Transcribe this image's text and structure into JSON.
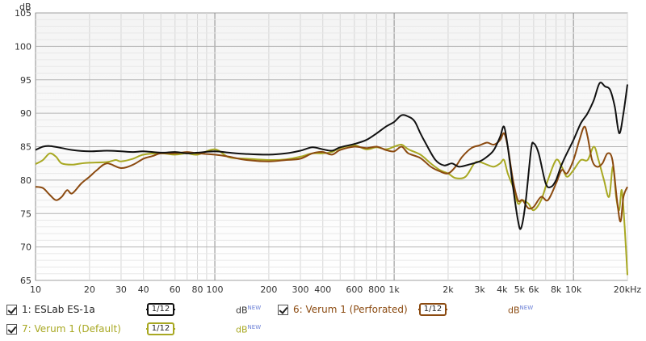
{
  "chart_data": {
    "type": "line",
    "ylabel": "dB",
    "xscale": "log",
    "xlim": [
      10,
      20000
    ],
    "ylim": [
      65,
      105
    ],
    "yticks": [
      65,
      70,
      75,
      80,
      85,
      90,
      95,
      100,
      105
    ],
    "xtick_labels": [
      {
        "v": 10,
        "t": "10"
      },
      {
        "v": 20,
        "t": "20"
      },
      {
        "v": 30,
        "t": "30"
      },
      {
        "v": 40,
        "t": "40"
      },
      {
        "v": 60,
        "t": "60"
      },
      {
        "v": 80,
        "t": "80"
      },
      {
        "v": 100,
        "t": "100"
      },
      {
        "v": 200,
        "t": "200"
      },
      {
        "v": 300,
        "t": "300"
      },
      {
        "v": 400,
        "t": "400"
      },
      {
        "v": 600,
        "t": "600"
      },
      {
        "v": 800,
        "t": "800"
      },
      {
        "v": 1000,
        "t": "1k"
      },
      {
        "v": 2000,
        "t": "2k"
      },
      {
        "v": 3000,
        "t": "3k"
      },
      {
        "v": 4000,
        "t": "4k"
      },
      {
        "v": 5000,
        "t": "5k"
      },
      {
        "v": 6000,
        "t": "6k"
      },
      {
        "v": 8000,
        "t": "8k"
      },
      {
        "v": 10000,
        "t": "10k"
      },
      {
        "v": 20000,
        "t": "20kHz"
      }
    ],
    "grid": true,
    "series": [
      {
        "name": "1: ESLab ES-1a",
        "color": "#111111",
        "points": [
          [
            10,
            84.5
          ],
          [
            11,
            85.0
          ],
          [
            12,
            85.1
          ],
          [
            14,
            84.8
          ],
          [
            16,
            84.5
          ],
          [
            20,
            84.3
          ],
          [
            25,
            84.4
          ],
          [
            30,
            84.3
          ],
          [
            35,
            84.2
          ],
          [
            40,
            84.3
          ],
          [
            50,
            84.1
          ],
          [
            60,
            84.2
          ],
          [
            70,
            84.0
          ],
          [
            80,
            84.1
          ],
          [
            100,
            84.3
          ],
          [
            120,
            84.1
          ],
          [
            150,
            83.9
          ],
          [
            200,
            83.8
          ],
          [
            250,
            84.0
          ],
          [
            300,
            84.4
          ],
          [
            350,
            84.9
          ],
          [
            400,
            84.6
          ],
          [
            450,
            84.4
          ],
          [
            500,
            84.9
          ],
          [
            600,
            85.4
          ],
          [
            700,
            86.0
          ],
          [
            800,
            87.0
          ],
          [
            900,
            88.0
          ],
          [
            1000,
            88.7
          ],
          [
            1100,
            89.7
          ],
          [
            1200,
            89.5
          ],
          [
            1300,
            88.8
          ],
          [
            1400,
            87.0
          ],
          [
            1500,
            85.5
          ],
          [
            1700,
            83.0
          ],
          [
            1900,
            82.2
          ],
          [
            2100,
            82.5
          ],
          [
            2300,
            82.0
          ],
          [
            2600,
            82.3
          ],
          [
            3000,
            82.8
          ],
          [
            3300,
            83.5
          ],
          [
            3600,
            84.5
          ],
          [
            3900,
            86.5
          ],
          [
            4100,
            88.0
          ],
          [
            4300,
            85.0
          ],
          [
            4600,
            79.0
          ],
          [
            4900,
            74.0
          ],
          [
            5100,
            72.8
          ],
          [
            5400,
            76.5
          ],
          [
            5800,
            84.5
          ],
          [
            6000,
            85.5
          ],
          [
            6400,
            84.0
          ],
          [
            7000,
            79.5
          ],
          [
            7500,
            79.0
          ],
          [
            8000,
            80.0
          ],
          [
            8500,
            82.0
          ],
          [
            9000,
            83.5
          ],
          [
            10000,
            86.0
          ],
          [
            11000,
            88.5
          ],
          [
            12000,
            90.0
          ],
          [
            13000,
            92.0
          ],
          [
            14000,
            94.5
          ],
          [
            15000,
            94.0
          ],
          [
            16000,
            93.5
          ],
          [
            17000,
            91.0
          ],
          [
            18000,
            87.0
          ],
          [
            19000,
            90.0
          ],
          [
            20000,
            94.3
          ]
        ]
      },
      {
        "name": "6: Verum 1 (Perforated)",
        "color": "#8b4a10",
        "points": [
          [
            10,
            79.0
          ],
          [
            11,
            78.8
          ],
          [
            12,
            77.8
          ],
          [
            13,
            77.0
          ],
          [
            14,
            77.5
          ],
          [
            15,
            78.5
          ],
          [
            16,
            78.0
          ],
          [
            18,
            79.5
          ],
          [
            20,
            80.5
          ],
          [
            22,
            81.5
          ],
          [
            25,
            82.5
          ],
          [
            30,
            81.8
          ],
          [
            35,
            82.3
          ],
          [
            40,
            83.2
          ],
          [
            45,
            83.6
          ],
          [
            50,
            84.0
          ],
          [
            60,
            84.0
          ],
          [
            70,
            84.2
          ],
          [
            80,
            84.0
          ],
          [
            100,
            83.8
          ],
          [
            120,
            83.5
          ],
          [
            150,
            83.0
          ],
          [
            200,
            82.8
          ],
          [
            250,
            83.0
          ],
          [
            300,
            83.2
          ],
          [
            350,
            84.0
          ],
          [
            400,
            84.2
          ],
          [
            450,
            83.8
          ],
          [
            500,
            84.5
          ],
          [
            600,
            85.0
          ],
          [
            700,
            84.8
          ],
          [
            800,
            85.0
          ],
          [
            900,
            84.5
          ],
          [
            1000,
            84.3
          ],
          [
            1100,
            85.0
          ],
          [
            1200,
            84.0
          ],
          [
            1400,
            83.3
          ],
          [
            1600,
            82.0
          ],
          [
            1800,
            81.3
          ],
          [
            2000,
            81.0
          ],
          [
            2200,
            82.0
          ],
          [
            2400,
            83.5
          ],
          [
            2700,
            84.8
          ],
          [
            3000,
            85.2
          ],
          [
            3300,
            85.6
          ],
          [
            3600,
            85.3
          ],
          [
            3900,
            86.0
          ],
          [
            4100,
            87.0
          ],
          [
            4300,
            85.0
          ],
          [
            4600,
            80.0
          ],
          [
            4900,
            77.0
          ],
          [
            5200,
            77.0
          ],
          [
            5600,
            75.8
          ],
          [
            6000,
            76.0
          ],
          [
            6600,
            77.5
          ],
          [
            7200,
            77.0
          ],
          [
            8000,
            79.5
          ],
          [
            8600,
            81.5
          ],
          [
            9200,
            81.0
          ],
          [
            10000,
            83.0
          ],
          [
            10800,
            86.0
          ],
          [
            11500,
            88.0
          ],
          [
            12000,
            86.5
          ],
          [
            12700,
            83.0
          ],
          [
            13500,
            82.0
          ],
          [
            14500,
            82.5
          ],
          [
            15500,
            84.0
          ],
          [
            16500,
            83.0
          ],
          [
            17500,
            77.0
          ],
          [
            18300,
            73.8
          ],
          [
            19000,
            77.5
          ],
          [
            20000,
            79.0
          ]
        ]
      },
      {
        "name": "7: Verum 1 (Default)",
        "color": "#a8a822",
        "points": [
          [
            10,
            82.4
          ],
          [
            11,
            83.0
          ],
          [
            12,
            84.0
          ],
          [
            13,
            83.5
          ],
          [
            14,
            82.5
          ],
          [
            16,
            82.3
          ],
          [
            18,
            82.5
          ],
          [
            20,
            82.6
          ],
          [
            25,
            82.7
          ],
          [
            28,
            83.0
          ],
          [
            30,
            82.8
          ],
          [
            35,
            83.2
          ],
          [
            40,
            83.8
          ],
          [
            50,
            84.0
          ],
          [
            60,
            83.8
          ],
          [
            70,
            84.0
          ],
          [
            80,
            83.8
          ],
          [
            100,
            84.6
          ],
          [
            120,
            83.4
          ],
          [
            150,
            83.2
          ],
          [
            200,
            83.0
          ],
          [
            250,
            83.1
          ],
          [
            300,
            83.5
          ],
          [
            350,
            84.0
          ],
          [
            400,
            84.0
          ],
          [
            450,
            84.2
          ],
          [
            500,
            84.8
          ],
          [
            600,
            85.2
          ],
          [
            700,
            84.6
          ],
          [
            800,
            84.9
          ],
          [
            900,
            84.6
          ],
          [
            1000,
            85.0
          ],
          [
            1100,
            85.3
          ],
          [
            1200,
            84.6
          ],
          [
            1400,
            83.8
          ],
          [
            1600,
            82.5
          ],
          [
            1800,
            81.5
          ],
          [
            2000,
            81.0
          ],
          [
            2200,
            80.3
          ],
          [
            2500,
            80.5
          ],
          [
            2800,
            82.5
          ],
          [
            3000,
            82.7
          ],
          [
            3300,
            82.3
          ],
          [
            3600,
            82.0
          ],
          [
            3900,
            82.5
          ],
          [
            4100,
            83.0
          ],
          [
            4300,
            81.0
          ],
          [
            4600,
            79.0
          ],
          [
            4900,
            76.5
          ],
          [
            5200,
            77.0
          ],
          [
            5600,
            76.5
          ],
          [
            6000,
            75.5
          ],
          [
            6600,
            77.0
          ],
          [
            7200,
            80.0
          ],
          [
            8000,
            83.0
          ],
          [
            8600,
            82.0
          ],
          [
            9200,
            80.5
          ],
          [
            10000,
            81.5
          ],
          [
            11000,
            83.0
          ],
          [
            12000,
            83.0
          ],
          [
            13000,
            85.0
          ],
          [
            13800,
            83.0
          ],
          [
            14800,
            80.0
          ],
          [
            15800,
            77.5
          ],
          [
            16600,
            82.0
          ],
          [
            17300,
            77.5
          ],
          [
            18000,
            75.5
          ],
          [
            18600,
            78.5
          ],
          [
            19300,
            73.0
          ],
          [
            20000,
            65.8
          ]
        ]
      }
    ]
  },
  "legend": [
    {
      "label": "1: ESLab ES-1a",
      "smoothing": "1/12",
      "unit": "dB",
      "badge": "NEW",
      "color": "#111111",
      "label_color": "#222222"
    },
    {
      "label": "6: Verum 1 (Perforated)",
      "smoothing": "1/12",
      "unit": "dB",
      "badge": "NEW",
      "color": "#8b4a10",
      "label_color": "#8b4a10"
    },
    {
      "label": "7: Verum 1 (Default)",
      "smoothing": "1/12",
      "unit": "dB",
      "badge": "NEW",
      "color": "#a8a822",
      "label_color": "#a8a822"
    }
  ]
}
